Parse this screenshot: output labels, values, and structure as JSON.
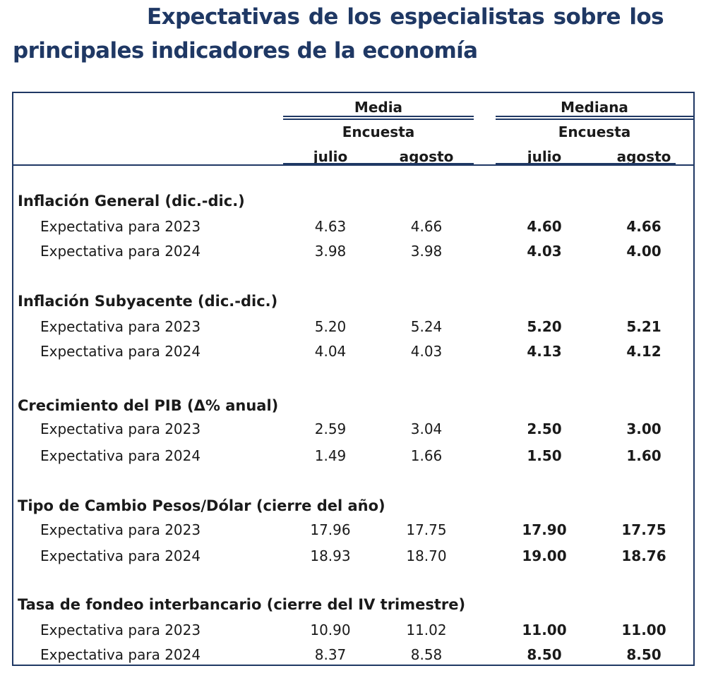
{
  "title": {
    "line1_words": [
      "Expectativas",
      "de",
      "los",
      "especialistas",
      "sobre",
      "los"
    ],
    "line2": "principales indicadores de la economía"
  },
  "header": {
    "media": "Media",
    "mediana": "Mediana",
    "encuesta_media": "Encuesta",
    "encuesta_mediana": "Encuesta",
    "cols": [
      "julio",
      "agosto",
      "julio",
      "agosto"
    ]
  },
  "sections": [
    {
      "title": "Inflación General (dic.-dic.)",
      "rows": [
        {
          "label": "Expectativa para 2023",
          "values": [
            "4.63",
            "4.66",
            "4.60",
            "4.66"
          ]
        },
        {
          "label": "Expectativa para 2024",
          "values": [
            "3.98",
            "3.98",
            "4.03",
            "4.00"
          ]
        }
      ]
    },
    {
      "title": "Inflación Subyacente (dic.-dic.)",
      "rows": [
        {
          "label": "Expectativa para 2023",
          "values": [
            "5.20",
            "5.24",
            "5.20",
            "5.21"
          ]
        },
        {
          "label": "Expectativa para 2024",
          "values": [
            "4.04",
            "4.03",
            "4.13",
            "4.12"
          ]
        }
      ]
    },
    {
      "title": "Crecimiento del PIB (Δ% anual)",
      "rows": [
        {
          "label": "Expectativa para 2023",
          "values": [
            "2.59",
            "3.04",
            "2.50",
            "3.00"
          ]
        },
        {
          "label": "Expectativa para 2024",
          "values": [
            "1.49",
            "1.66",
            "1.50",
            "1.60"
          ]
        }
      ]
    },
    {
      "title": "Tipo de Cambio Pesos/Dólar (cierre del año)",
      "rows": [
        {
          "label": "Expectativa para 2023",
          "values": [
            "17.96",
            "17.75",
            "17.90",
            "17.75"
          ]
        },
        {
          "label": "Expectativa para 2024",
          "values": [
            "18.93",
            "18.70",
            "19.00",
            "18.76"
          ]
        }
      ]
    },
    {
      "title": "Tasa de fondeo interbancario (cierre del IV trimestre)",
      "rows": [
        {
          "label": "Expectativa para 2023",
          "values": [
            "10.90",
            "11.02",
            "11.00",
            "11.00"
          ]
        },
        {
          "label": "Expectativa para 2024",
          "values": [
            "8.37",
            "8.58",
            "8.50",
            "8.50"
          ]
        }
      ]
    }
  ]
}
